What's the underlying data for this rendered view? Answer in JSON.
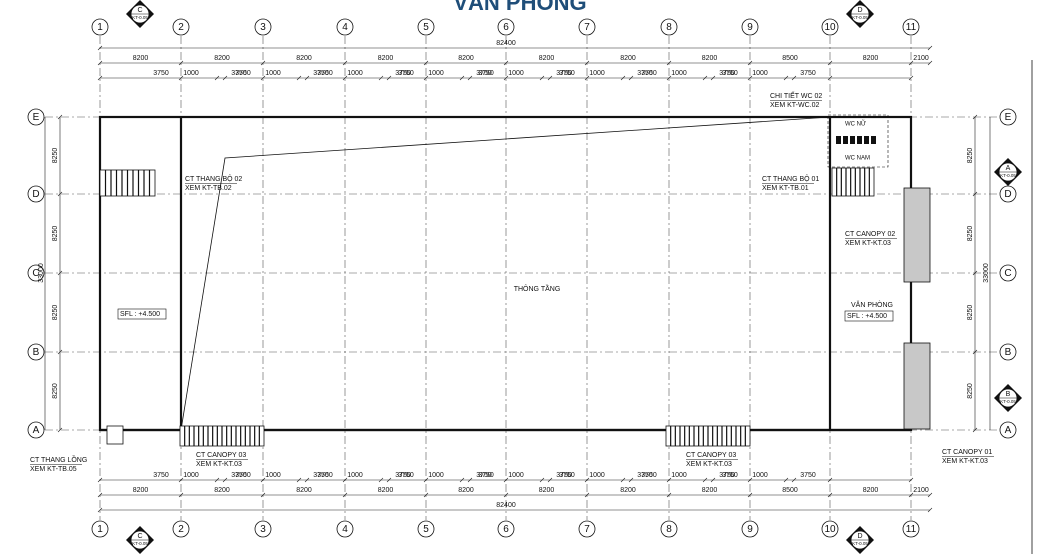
{
  "title": "VĂN PHÒNG",
  "grid_columns": [
    "1",
    "2",
    "3",
    "4",
    "5",
    "6",
    "7",
    "8",
    "9",
    "10",
    "11"
  ],
  "grid_rows": [
    "E",
    "D",
    "C",
    "B",
    "A"
  ],
  "section_marks": [
    {
      "letter": "C",
      "ref": "KT-0.05"
    },
    {
      "letter": "D",
      "ref": "KT-0.05"
    },
    {
      "letter": "A",
      "ref": "KT-0.05"
    },
    {
      "letter": "B",
      "ref": "KT-0.05"
    }
  ],
  "overall_dimension": "82400",
  "bay_dimensions": [
    "8200",
    "8200",
    "8200",
    "8200",
    "8200",
    "8200",
    "8200",
    "8200",
    "8500",
    "8200"
  ],
  "end_dimension": "2100",
  "sub_dimensions": [
    "3750",
    "1000",
    "3750"
  ],
  "row_dimensions": [
    "8250",
    "8250",
    "8250",
    "8250"
  ],
  "total_height": "33000",
  "rooms": [
    "THÔNG TẦNG",
    "VĂN PHÒNG"
  ],
  "levels": [
    "SFL : +4.500",
    "SFL : +4.500"
  ],
  "wc_labels": [
    "WC NỮ",
    "WC NAM"
  ],
  "callouts": [
    {
      "title": "CT THANG BỘ 02",
      "ref": "XEM KT-TB.02"
    },
    {
      "title": "CT THANG BỘ 01",
      "ref": "XEM KT-TB.01"
    },
    {
      "title": "CHI TIẾT WC 02",
      "ref": "XEM KT-WC.02"
    },
    {
      "title": "CT CANOPY 02",
      "ref": "XEM KT-KT.03"
    },
    {
      "title": "CT CANOPY 03",
      "ref": "XEM KT-KT.03"
    },
    {
      "title": "CT CANOPY 03",
      "ref": "XEM KT-KT.03"
    },
    {
      "title": "CT CANOPY 01",
      "ref": "XEM KT-KT.03"
    },
    {
      "title": "CT THANG LỒNG",
      "ref": "XEM KT-TB.05"
    }
  ]
}
